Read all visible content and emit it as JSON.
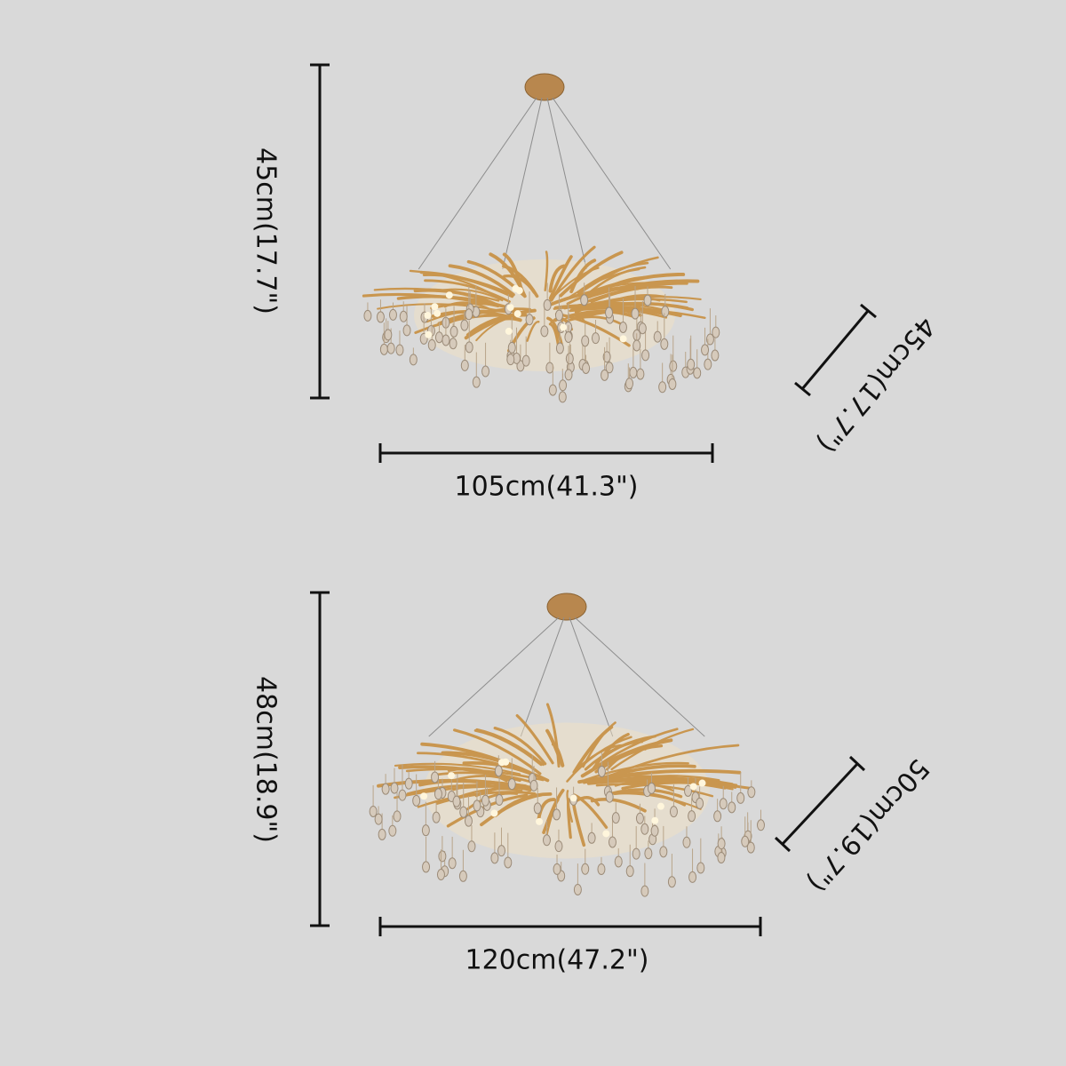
{
  "products": [
    {
      "height": "45cm(17.7\")",
      "width": "105cm(41.3\")",
      "depth": "45cm(17.7\")"
    },
    {
      "height": "48cm(18.9\")",
      "width": "120cm(47.2\")",
      "depth": "50cm(19.7\")"
    }
  ]
}
